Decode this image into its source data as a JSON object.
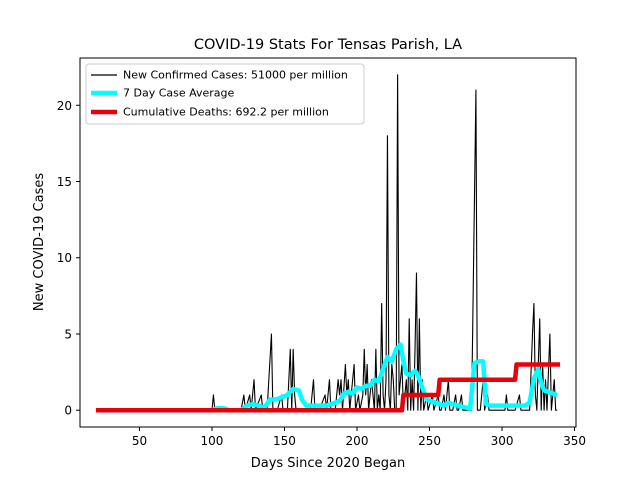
{
  "chart_data": {
    "type": "line",
    "title": "COVID-19 Stats For Tensas Parish, LA",
    "xlabel": "Days Since 2020 Began",
    "ylabel": "New COVID-19 Cases",
    "xlim": [
      9,
      351
    ],
    "ylim": [
      -1.1,
      23.1
    ],
    "xticks": [
      50,
      100,
      150,
      200,
      250,
      300,
      350
    ],
    "yticks": [
      0,
      5,
      10,
      15,
      20
    ],
    "grid": false,
    "legend": {
      "placement": "top-left"
    },
    "series": [
      {
        "name": "New Confirmed Cases: 51000 per million",
        "color": "#000000",
        "style": "thin",
        "points": [
          [
            100,
            0
          ],
          [
            101,
            1
          ],
          [
            102,
            0
          ],
          [
            106,
            0
          ],
          [
            112,
            0
          ],
          [
            120,
            0
          ],
          [
            122,
            1
          ],
          [
            123,
            0
          ],
          [
            126,
            1
          ],
          [
            127,
            0
          ],
          [
            129,
            2
          ],
          [
            130,
            0
          ],
          [
            134,
            1
          ],
          [
            135,
            0
          ],
          [
            138,
            0
          ],
          [
            141,
            5
          ],
          [
            142,
            0
          ],
          [
            145,
            0
          ],
          [
            148,
            1
          ],
          [
            149,
            0
          ],
          [
            152,
            0
          ],
          [
            154,
            4
          ],
          [
            155,
            0
          ],
          [
            156,
            4
          ],
          [
            157,
            1
          ],
          [
            158,
            0
          ],
          [
            160,
            0
          ],
          [
            162,
            0
          ],
          [
            165,
            0
          ],
          [
            168,
            0
          ],
          [
            170,
            2
          ],
          [
            171,
            0
          ],
          [
            174,
            0
          ],
          [
            178,
            1
          ],
          [
            179,
            0
          ],
          [
            181,
            2
          ],
          [
            182,
            0
          ],
          [
            185,
            0
          ],
          [
            187,
            2
          ],
          [
            188,
            1
          ],
          [
            189,
            2
          ],
          [
            190,
            0
          ],
          [
            192,
            3
          ],
          [
            193,
            1
          ],
          [
            194,
            2
          ],
          [
            195,
            0
          ],
          [
            197,
            2
          ],
          [
            198,
            3
          ],
          [
            199,
            0
          ],
          [
            201,
            1
          ],
          [
            202,
            0
          ],
          [
            204,
            1
          ],
          [
            205,
            4
          ],
          [
            206,
            1
          ],
          [
            207,
            3
          ],
          [
            208,
            0
          ],
          [
            210,
            2
          ],
          [
            211,
            1
          ],
          [
            212,
            0
          ],
          [
            213,
            4
          ],
          [
            214,
            0
          ],
          [
            215,
            1
          ],
          [
            216,
            0
          ],
          [
            217,
            7
          ],
          [
            218,
            1
          ],
          [
            219,
            0
          ],
          [
            220,
            2
          ],
          [
            221,
            18
          ],
          [
            222,
            1
          ],
          [
            223,
            0
          ],
          [
            224,
            3
          ],
          [
            225,
            2
          ],
          [
            226,
            0
          ],
          [
            227,
            0
          ],
          [
            228,
            22
          ],
          [
            229,
            1
          ],
          [
            230,
            2
          ],
          [
            231,
            3
          ],
          [
            232,
            0
          ],
          [
            233,
            1
          ],
          [
            234,
            2
          ],
          [
            235,
            0
          ],
          [
            236,
            6
          ],
          [
            237,
            0
          ],
          [
            238,
            2
          ],
          [
            239,
            0
          ],
          [
            240,
            4
          ],
          [
            241,
            9
          ],
          [
            242,
            0
          ],
          [
            243,
            6
          ],
          [
            244,
            0
          ],
          [
            245,
            2
          ],
          [
            246,
            0
          ],
          [
            248,
            1
          ],
          [
            249,
            0
          ],
          [
            252,
            1
          ],
          [
            253,
            0
          ],
          [
            256,
            1
          ],
          [
            257,
            0
          ],
          [
            258,
            0
          ],
          [
            260,
            1
          ],
          [
            261,
            0
          ],
          [
            263,
            2
          ],
          [
            264,
            0
          ],
          [
            266,
            0
          ],
          [
            268,
            1
          ],
          [
            269,
            0
          ],
          [
            270,
            0
          ],
          [
            272,
            1
          ],
          [
            273,
            0
          ],
          [
            276,
            0
          ],
          [
            279,
            0
          ],
          [
            282,
            21
          ],
          [
            283,
            0
          ],
          [
            285,
            0
          ],
          [
            287,
            2
          ],
          [
            288,
            0
          ],
          [
            290,
            1
          ],
          [
            291,
            0
          ],
          [
            293,
            0
          ],
          [
            296,
            0
          ],
          [
            299,
            0
          ],
          [
            302,
            0
          ],
          [
            303,
            1
          ],
          [
            304,
            0
          ],
          [
            306,
            0
          ],
          [
            309,
            0
          ],
          [
            312,
            1
          ],
          [
            313,
            0
          ],
          [
            316,
            0
          ],
          [
            319,
            0
          ],
          [
            321,
            5
          ],
          [
            322,
            7
          ],
          [
            323,
            1
          ],
          [
            324,
            0
          ],
          [
            326,
            6
          ],
          [
            327,
            0
          ],
          [
            328,
            3
          ],
          [
            329,
            0
          ],
          [
            330,
            2
          ],
          [
            331,
            0
          ],
          [
            333,
            5
          ],
          [
            334,
            0
          ],
          [
            336,
            2
          ],
          [
            337,
            0
          ],
          [
            338,
            0
          ]
        ]
      },
      {
        "name": "7 Day Case Average",
        "color": "#00ffff",
        "style": "thick",
        "points": [
          [
            100,
            0
          ],
          [
            104,
            0.14
          ],
          [
            108,
            0.14
          ],
          [
            112,
            0
          ],
          [
            120,
            0
          ],
          [
            124,
            0.3
          ],
          [
            128,
            0.4
          ],
          [
            132,
            0.3
          ],
          [
            136,
            0.15
          ],
          [
            140,
            0.7
          ],
          [
            144,
            0.7
          ],
          [
            148,
            0.85
          ],
          [
            152,
            1
          ],
          [
            156,
            1.4
          ],
          [
            160,
            1.3
          ],
          [
            162,
            0.7
          ],
          [
            165,
            0.3
          ],
          [
            168,
            0.3
          ],
          [
            171,
            0.3
          ],
          [
            175,
            0.3
          ],
          [
            179,
            0.3
          ],
          [
            182,
            0.4
          ],
          [
            185,
            0.5
          ],
          [
            188,
            0.6
          ],
          [
            191,
            1.1
          ],
          [
            194,
            1.2
          ],
          [
            197,
            1.1
          ],
          [
            200,
            1.5
          ],
          [
            203,
            1.4
          ],
          [
            206,
            1.6
          ],
          [
            209,
            1.6
          ],
          [
            212,
            2
          ],
          [
            215,
            1.9
          ],
          [
            218,
            2.7
          ],
          [
            221,
            3.5
          ],
          [
            224,
            3.2
          ],
          [
            227,
            4
          ],
          [
            230,
            4.3
          ],
          [
            232,
            3.2
          ],
          [
            234,
            2.4
          ],
          [
            237,
            2.3
          ],
          [
            240,
            2.6
          ],
          [
            242,
            2.3
          ],
          [
            245,
            1.5
          ],
          [
            248,
            0.7
          ],
          [
            251,
            0.6
          ],
          [
            254,
            0.5
          ],
          [
            257,
            0.4
          ],
          [
            260,
            0.3
          ],
          [
            263,
            0.5
          ],
          [
            266,
            0.4
          ],
          [
            270,
            0.3
          ],
          [
            274,
            0.2
          ],
          [
            278,
            0.1
          ],
          [
            281,
            3.1
          ],
          [
            284,
            3.2
          ],
          [
            287,
            3.2
          ],
          [
            289,
            0.4
          ],
          [
            292,
            0.3
          ],
          [
            295,
            0.3
          ],
          [
            298,
            0.3
          ],
          [
            301,
            0.3
          ],
          [
            304,
            0.3
          ],
          [
            307,
            0.3
          ],
          [
            310,
            0.3
          ],
          [
            313,
            0.3
          ],
          [
            316,
            0.3
          ],
          [
            319,
            0.5
          ],
          [
            322,
            2.1
          ],
          [
            325,
            2.7
          ],
          [
            327,
            1.8
          ],
          [
            329,
            1.3
          ],
          [
            332,
            1.2
          ],
          [
            335,
            1.1
          ],
          [
            338,
            1
          ]
        ]
      },
      {
        "name": "Cumulative Deaths: 692.2 per million",
        "color": "#e8000b",
        "style": "thick",
        "points": [
          [
            20,
            0
          ],
          [
            231,
            0
          ],
          [
            232,
            1
          ],
          [
            256,
            1
          ],
          [
            257,
            2
          ],
          [
            309,
            2
          ],
          [
            310,
            3
          ],
          [
            340,
            3
          ]
        ]
      }
    ]
  }
}
